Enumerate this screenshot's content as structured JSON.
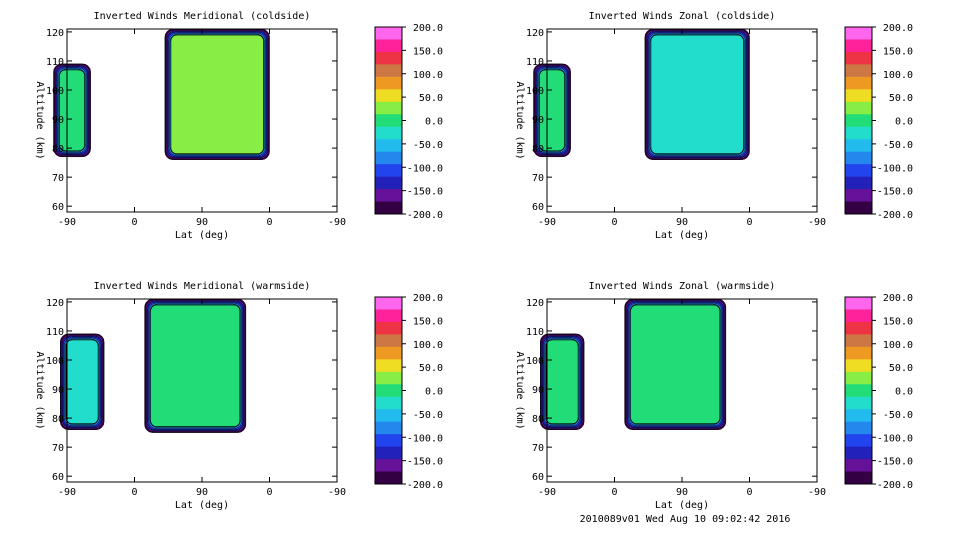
{
  "footer": "2010089v01 Wed Aug 10 09:02:42 2016",
  "chart_data": [
    {
      "type": "heatmap",
      "title": "Inverted Winds Meridional (coldside)",
      "xlabel": "Lat (deg)",
      "ylabel": "Altitude (km)",
      "x_tick_labels": [
        "-90",
        "0",
        "90",
        "0",
        "-90"
      ],
      "y_ticks": [
        60,
        70,
        80,
        90,
        100,
        110,
        120
      ],
      "ylim": [
        58,
        121
      ],
      "colorbar_labels": [
        "200.0",
        "150.0",
        "100.0",
        "50.0",
        "0.0",
        "-50.0",
        "-100.0",
        "-150.0",
        "-200.0"
      ],
      "colorbar_colors": [
        "#ff66ee",
        "#ff2299",
        "#ee3344",
        "#cc7744",
        "#ee9922",
        "#eedd22",
        "#88ee44",
        "#22dd77",
        "#22ddcc",
        "#22bbee",
        "#2288ee",
        "#2244ee",
        "#2222bb",
        "#661199",
        "#330044"
      ],
      "regions": [
        {
          "x": [
            -0.2,
            0.35
          ],
          "alt": [
            77,
            109
          ],
          "level": 0.0
        },
        {
          "x": [
            1.45,
            3.0
          ],
          "alt": [
            76,
            121
          ],
          "level": 25.0
        }
      ]
    },
    {
      "type": "heatmap",
      "title": "Inverted Winds Zonal (coldside)",
      "xlabel": "Lat (deg)",
      "ylabel": "Altitude (km)",
      "x_tick_labels": [
        "-90",
        "0",
        "90",
        "0",
        "-90"
      ],
      "y_ticks": [
        60,
        70,
        80,
        90,
        100,
        110,
        120
      ],
      "ylim": [
        58,
        121
      ],
      "colorbar_labels": [
        "200.0",
        "150.0",
        "100.0",
        "50.0",
        "0.0",
        "-50.0",
        "-100.0",
        "-150.0",
        "-200.0"
      ],
      "colorbar_colors": [
        "#ff66ee",
        "#ff2299",
        "#ee3344",
        "#cc7744",
        "#ee9922",
        "#eedd22",
        "#88ee44",
        "#22dd77",
        "#22ddcc",
        "#22bbee",
        "#2288ee",
        "#2244ee",
        "#2222bb",
        "#661199",
        "#330044"
      ],
      "regions": [
        {
          "x": [
            -0.2,
            0.35
          ],
          "alt": [
            77,
            109
          ],
          "level": -10.0
        },
        {
          "x": [
            1.45,
            3.0
          ],
          "alt": [
            76,
            121
          ],
          "level": -20.0
        }
      ]
    },
    {
      "type": "heatmap",
      "title": "Inverted Winds Meridional (warmside)",
      "xlabel": "Lat (deg)",
      "ylabel": "Altitude (km)",
      "x_tick_labels": [
        "-90",
        "0",
        "90",
        "0",
        "-90"
      ],
      "y_ticks": [
        60,
        70,
        80,
        90,
        100,
        110,
        120
      ],
      "ylim": [
        58,
        121
      ],
      "colorbar_labels": [
        "200.0",
        "150.0",
        "100.0",
        "50.0",
        "0.0",
        "-50.0",
        "-100.0",
        "-150.0",
        "-200.0"
      ],
      "colorbar_colors": [
        "#ff66ee",
        "#ff2299",
        "#ee3344",
        "#cc7744",
        "#ee9922",
        "#eedd22",
        "#88ee44",
        "#22dd77",
        "#22ddcc",
        "#22bbee",
        "#2288ee",
        "#2244ee",
        "#2222bb",
        "#661199",
        "#330044"
      ],
      "regions": [
        {
          "x": [
            -0.1,
            0.55
          ],
          "alt": [
            76,
            109
          ],
          "level": -30.0
        },
        {
          "x": [
            1.15,
            2.65
          ],
          "alt": [
            75,
            121
          ],
          "level": 10.0
        }
      ]
    },
    {
      "type": "heatmap",
      "title": "Inverted Winds Zonal (warmside)",
      "xlabel": "Lat (deg)",
      "ylabel": "Altitude (km)",
      "x_tick_labels": [
        "-90",
        "0",
        "90",
        "0",
        "-90"
      ],
      "y_ticks": [
        60,
        70,
        80,
        90,
        100,
        110,
        120
      ],
      "ylim": [
        58,
        121
      ],
      "colorbar_labels": [
        "200.0",
        "150.0",
        "100.0",
        "50.0",
        "0.0",
        "-50.0",
        "-100.0",
        "-150.0",
        "-200.0"
      ],
      "colorbar_colors": [
        "#ff66ee",
        "#ff2299",
        "#ee3344",
        "#cc7744",
        "#ee9922",
        "#eedd22",
        "#88ee44",
        "#22dd77",
        "#22ddcc",
        "#22bbee",
        "#2288ee",
        "#2244ee",
        "#2222bb",
        "#661199",
        "#330044"
      ],
      "regions": [
        {
          "x": [
            -0.1,
            0.55
          ],
          "alt": [
            76,
            109
          ],
          "level": 10.0
        },
        {
          "x": [
            1.15,
            2.65
          ],
          "alt": [
            76,
            121
          ],
          "level": 5.0
        }
      ]
    }
  ]
}
